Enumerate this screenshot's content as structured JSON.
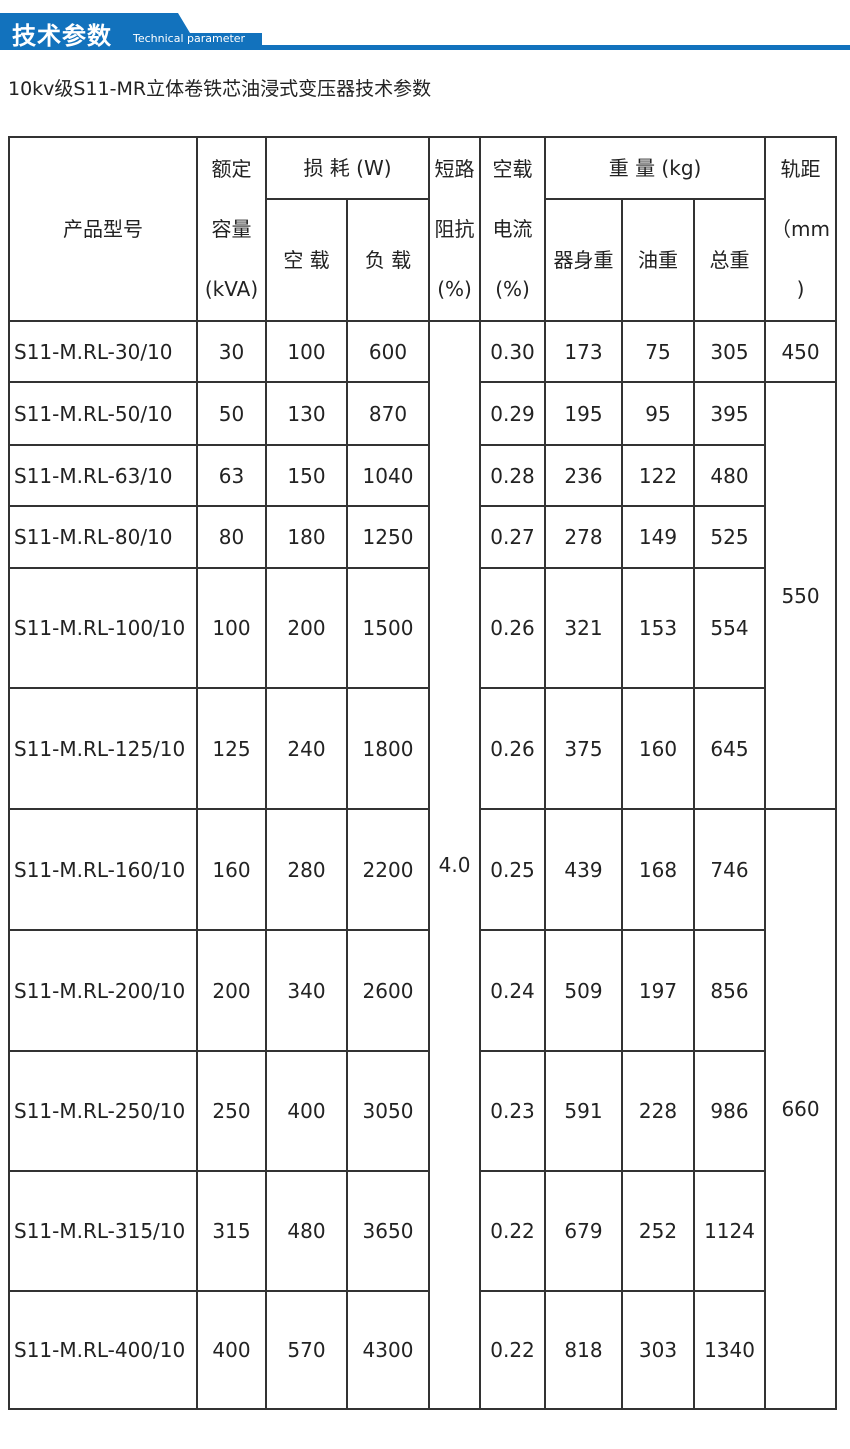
{
  "banner": {
    "title_cn": "技术参数",
    "title_en": "Technical parameter",
    "color": "#1272bd"
  },
  "subtitle": "10kv级S11-MR立体卷铁芯油浸式变压器技术参数",
  "header": {
    "model": "产品型号",
    "capacity": [
      "额定",
      "容量",
      "(kVA)"
    ],
    "loss": "损 耗 (W)",
    "loss_noload": "空 载",
    "loss_load": "负 载",
    "impedance": [
      "短路",
      "阻抗",
      "(%)"
    ],
    "current": [
      "空载",
      "电流",
      "(%)"
    ],
    "weight": "重 量 (kg)",
    "weight_body": "器身重",
    "weight_oil": "油重",
    "weight_total": "总重",
    "gauge": [
      "轨距",
      "（mm",
      ")"
    ]
  },
  "impedance_value": "4.0",
  "gauge_values": [
    "450",
    "550",
    "660"
  ],
  "rows": [
    {
      "model": "S11-M.RL-30/10",
      "kva": "30",
      "noload": "100",
      "load": "600",
      "current": "0.30",
      "body": "173",
      "oil": "75",
      "total": "305"
    },
    {
      "model": "S11-M.RL-50/10",
      "kva": "50",
      "noload": "130",
      "load": "870",
      "current": "0.29",
      "body": "195",
      "oil": "95",
      "total": "395"
    },
    {
      "model": "S11-M.RL-63/10",
      "kva": "63",
      "noload": "150",
      "load": "1040",
      "current": "0.28",
      "body": "236",
      "oil": "122",
      "total": "480"
    },
    {
      "model": "S11-M.RL-80/10",
      "kva": "80",
      "noload": "180",
      "load": "1250",
      "current": "0.27",
      "body": "278",
      "oil": "149",
      "total": "525"
    },
    {
      "model": "S11-M.RL-100/10",
      "kva": "100",
      "noload": "200",
      "load": "1500",
      "current": "0.26",
      "body": "321",
      "oil": "153",
      "total": "554"
    },
    {
      "model": "S11-M.RL-125/10",
      "kva": "125",
      "noload": "240",
      "load": "1800",
      "current": "0.26",
      "body": "375",
      "oil": "160",
      "total": "645"
    },
    {
      "model": "S11-M.RL-160/10",
      "kva": "160",
      "noload": "280",
      "load": "2200",
      "current": "0.25",
      "body": "439",
      "oil": "168",
      "total": "746"
    },
    {
      "model": "S11-M.RL-200/10",
      "kva": "200",
      "noload": "340",
      "load": "2600",
      "current": "0.24",
      "body": "509",
      "oil": "197",
      "total": "856"
    },
    {
      "model": "S11-M.RL-250/10",
      "kva": "250",
      "noload": "400",
      "load": "3050",
      "current": "0.23",
      "body": "591",
      "oil": "228",
      "total": "986"
    },
    {
      "model": "S11-M.RL-315/10",
      "kva": "315",
      "noload": "480",
      "load": "3650",
      "current": "0.22",
      "body": "679",
      "oil": "252",
      "total": "1124"
    },
    {
      "model": "S11-M.RL-400/10",
      "kva": "400",
      "noload": "570",
      "load": "4300",
      "current": "0.22",
      "body": "818",
      "oil": "303",
      "total": "1340"
    }
  ]
}
